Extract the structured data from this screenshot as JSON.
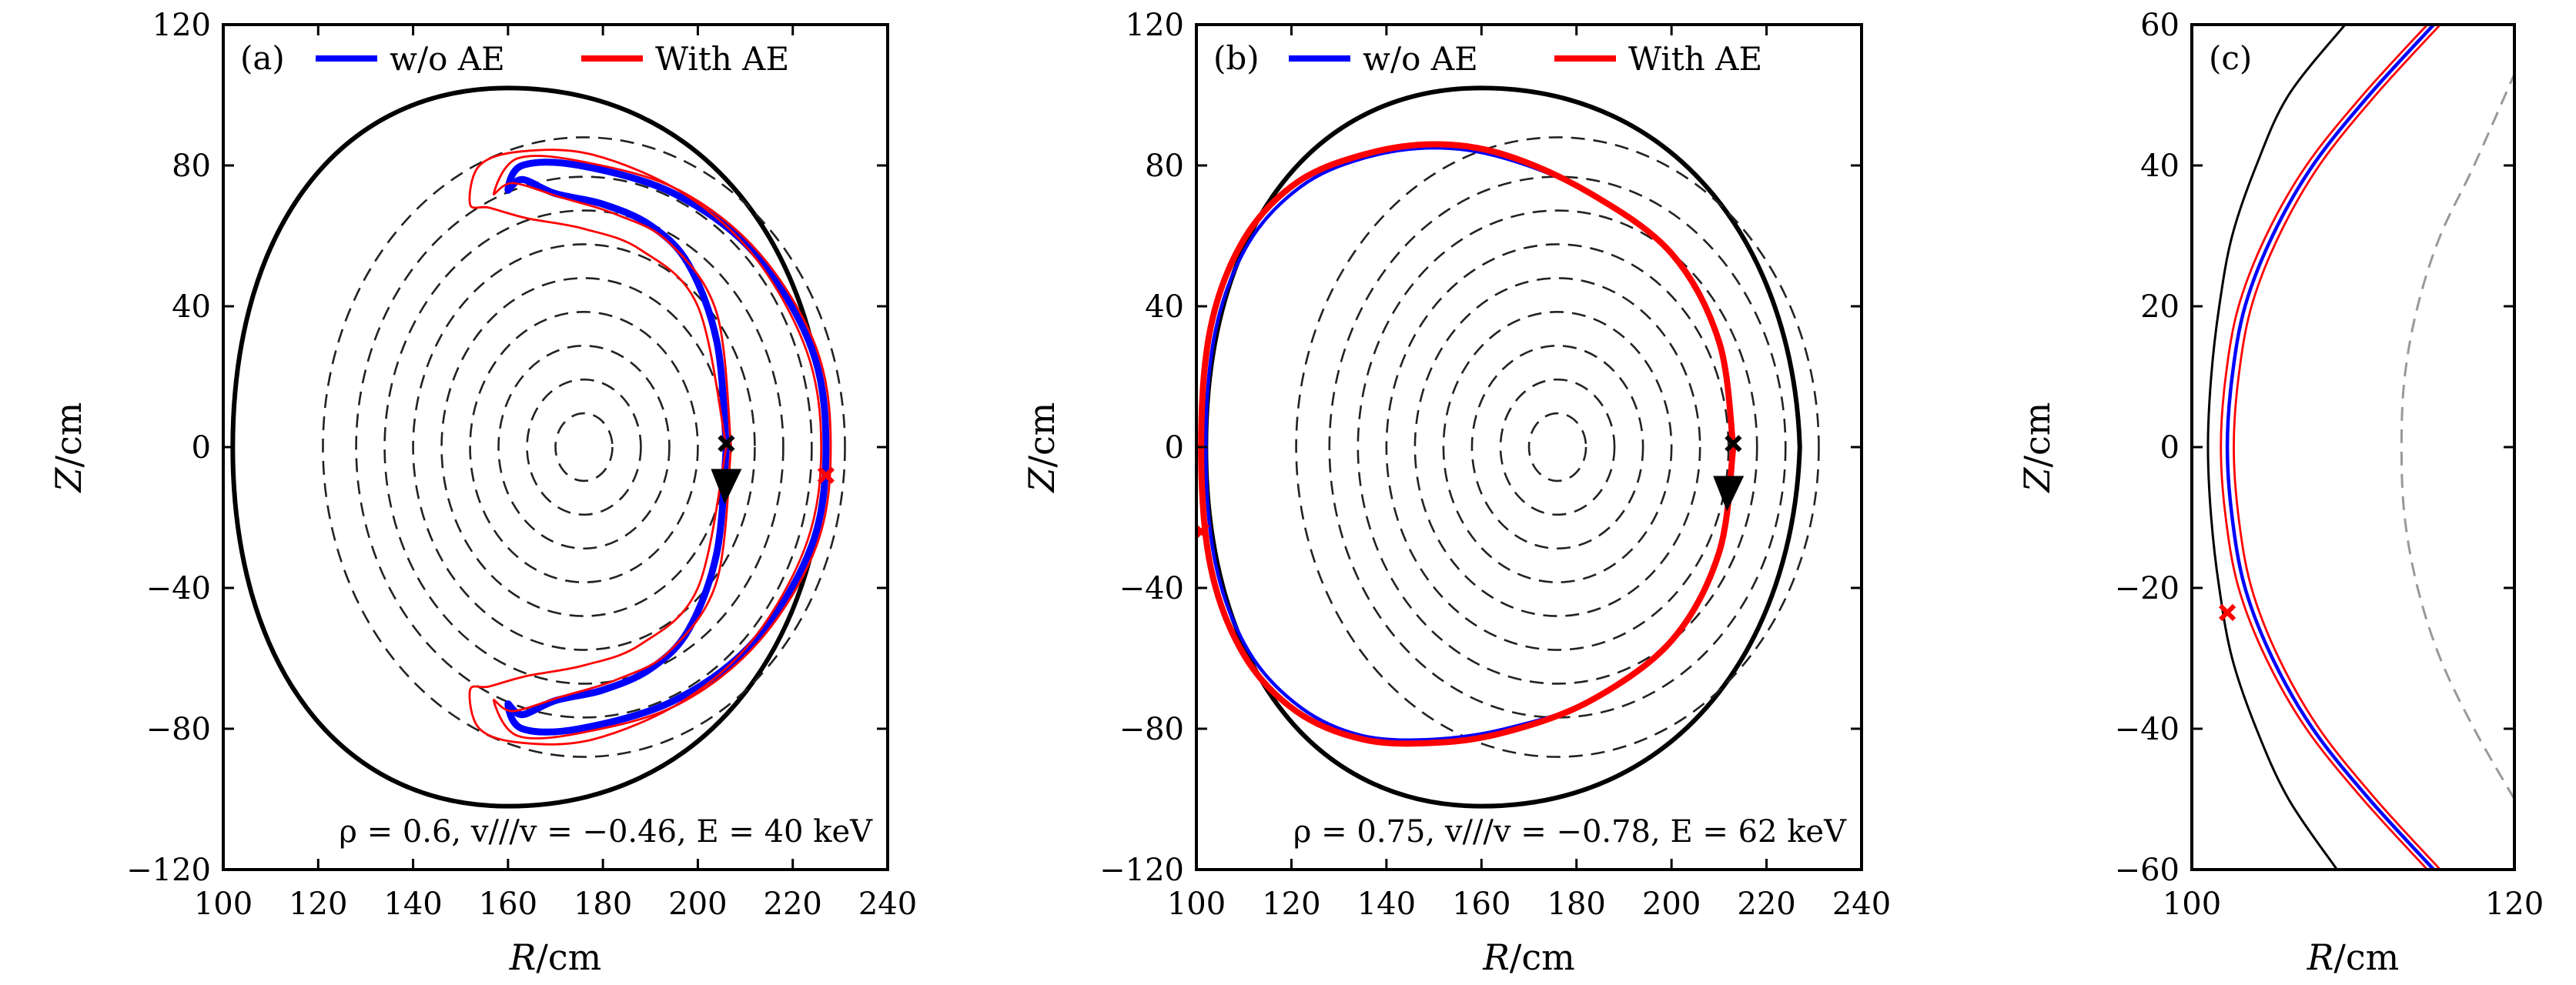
{
  "chart_data": [
    {
      "type": "line",
      "panel_tag": "(a)",
      "xlabel": "R/cm",
      "ylabel": "Z/cm",
      "xlim": [
        100,
        240
      ],
      "ylim": [
        -120,
        120
      ],
      "xticks": [
        100,
        120,
        140,
        160,
        180,
        200,
        220,
        240
      ],
      "yticks": [
        -120,
        -80,
        -40,
        0,
        40,
        80,
        120
      ],
      "xtick_labels": [
        "100",
        "120",
        "140",
        "160",
        "180",
        "200",
        "220",
        "240"
      ],
      "ytick_labels": [
        "−120",
        "−80",
        "−40",
        "0",
        "40",
        "80",
        "120"
      ],
      "legend": {
        "position": "top",
        "entries": [
          {
            "label": "w/o AE",
            "color": "#0000ff"
          },
          {
            "label": "With AE",
            "color": "#ff0000"
          }
        ]
      },
      "annotation": "ρ = 0.6,  v///v = −0.46,  E = 40 keV",
      "boundary": {
        "center": [
          160,
          0
        ],
        "r_outer": 67,
        "r_inner": 58,
        "height": 102
      },
      "flux_surfaces": {
        "axis": [
          176,
          0
        ],
        "half_widths": [
          6,
          12,
          18,
          24,
          30,
          36,
          42,
          48,
          55
        ],
        "elongation": 1.6
      },
      "markers": [
        {
          "name": "start",
          "x": 206,
          "y": 1,
          "color": "#000000",
          "shape": "x"
        },
        {
          "name": "red-start",
          "x": 227,
          "y": -8,
          "color": "#ff0000",
          "shape": "x"
        },
        {
          "name": "direction",
          "x": 206,
          "y": -11,
          "color": "#000000",
          "shape": "arrow"
        }
      ],
      "series": [
        {
          "name": "w/o AE",
          "color": "#0000ff",
          "x": [
            206,
            204,
            198,
            190,
            180,
            170,
            163,
            160,
            163,
            175,
            195,
            212,
            224,
            227,
            224,
            212,
            195,
            175,
            163,
            160,
            163,
            170,
            180,
            190,
            198,
            204,
            206
          ],
          "y": [
            0,
            -30,
            -52,
            -63,
            -69,
            -72,
            -76,
            -73,
            -80,
            -80,
            -72,
            -55,
            -28,
            0,
            28,
            55,
            72,
            80,
            80,
            73,
            76,
            72,
            69,
            63,
            52,
            30,
            0
          ]
        },
        {
          "name": "With AE",
          "color": "#ff0000",
          "x": [
            207,
            204,
            194,
            183,
            171,
            161,
            157,
            162,
            176,
            196,
            213,
            225,
            228,
            225,
            213,
            196,
            176,
            162,
            157,
            161,
            171,
            183,
            194,
            204,
            207
          ],
          "y": [
            0,
            -38,
            -58,
            -66,
            -71,
            -75,
            -72,
            -82,
            -81,
            -73,
            -55,
            -28,
            0,
            28,
            55,
            73,
            81,
            82,
            72,
            75,
            71,
            66,
            58,
            38,
            0
          ]
        },
        {
          "name": "",
          "color": "#ff0000",
          "x": [
            206,
            200,
            188,
            176,
            164,
            156,
            152,
            154,
            163,
            178,
            197,
            212,
            223,
            226,
            223,
            212,
            197,
            178,
            163,
            154,
            152,
            156,
            164,
            176,
            188,
            200,
            206
          ],
          "y": [
            0,
            -40,
            -56,
            -62,
            -65,
            -68,
            -69,
            -80,
            -84,
            -83,
            -72,
            -54,
            -27,
            0,
            27,
            54,
            72,
            83,
            84,
            80,
            69,
            68,
            65,
            62,
            56,
            40,
            0
          ]
        }
      ]
    },
    {
      "type": "line",
      "panel_tag": "(b)",
      "xlabel": "R/cm",
      "ylabel": "Z/cm",
      "xlim": [
        100,
        240
      ],
      "ylim": [
        -120,
        120
      ],
      "xticks": [
        100,
        120,
        140,
        160,
        180,
        200,
        220,
        240
      ],
      "yticks": [
        -120,
        -80,
        -40,
        0,
        40,
        80,
        120
      ],
      "xtick_labels": [
        "100",
        "120",
        "140",
        "160",
        "180",
        "200",
        "220",
        "240"
      ],
      "ytick_labels": [
        "−120",
        "−80",
        "−40",
        "0",
        "40",
        "80",
        "120"
      ],
      "legend": {
        "position": "top",
        "entries": [
          {
            "label": "w/o AE",
            "color": "#0000ff"
          },
          {
            "label": "With AE",
            "color": "#ff0000"
          }
        ]
      },
      "annotation": "ρ = 0.75,  v///v = −0.78,  E = 62 keV",
      "boundary": {
        "center": [
          160,
          0
        ],
        "r_outer": 67,
        "r_inner": 58,
        "height": 102
      },
      "flux_surfaces": {
        "axis": [
          176,
          0
        ],
        "half_widths": [
          6,
          12,
          18,
          24,
          30,
          36,
          42,
          48,
          55
        ],
        "elongation": 1.6
      },
      "markers": [
        {
          "name": "start",
          "x": 213,
          "y": 1,
          "color": "#000000",
          "shape": "x"
        },
        {
          "name": "red-start",
          "x": 101,
          "y": -24,
          "color": "#ff0000",
          "shape": "x"
        },
        {
          "name": "direction",
          "x": 212,
          "y": -13,
          "color": "#000000",
          "shape": "arrow"
        }
      ],
      "series": [
        {
          "name": "w/o AE",
          "color": "#0000ff",
          "x": [
            213,
            210,
            200,
            183,
            165,
            150,
            135,
            122,
            111,
            104,
            102,
            104,
            111,
            122,
            135,
            150,
            165,
            183,
            200,
            210,
            213
          ],
          "y": [
            0,
            -30,
            -55,
            -72,
            -80,
            -83,
            -82,
            -74,
            -58,
            -33,
            0,
            33,
            58,
            74,
            82,
            85,
            82,
            72,
            55,
            30,
            0
          ]
        },
        {
          "name": "With AE",
          "color": "#ff0000",
          "x": [
            213,
            210,
            200,
            183,
            165,
            150,
            135,
            121,
            110,
            103,
            101,
            103,
            110,
            121,
            135,
            150,
            165,
            183,
            200,
            210,
            213
          ],
          "y": [
            0,
            -30,
            -55,
            -72,
            -81,
            -84,
            -83,
            -75,
            -59,
            -34,
            0,
            34,
            59,
            75,
            83,
            86,
            83,
            72,
            55,
            30,
            0
          ]
        }
      ]
    },
    {
      "type": "line",
      "panel_tag": "(c)",
      "xlabel": "R/cm",
      "ylabel": "Z/cm",
      "xlim": [
        100,
        120
      ],
      "ylim": [
        -60,
        60
      ],
      "xticks": [
        100,
        120
      ],
      "yticks": [
        -60,
        -40,
        -20,
        0,
        20,
        40,
        60
      ],
      "xtick_labels": [
        "100",
        "120"
      ],
      "ytick_labels": [
        "−60",
        "−40",
        "−20",
        "0",
        "20",
        "40",
        "60"
      ],
      "markers": [
        {
          "name": "red-start",
          "x": 102.2,
          "y": -23.5,
          "color": "#ff0000",
          "shape": "x"
        }
      ],
      "series": [
        {
          "name": "w/o AE",
          "color": "#0000ff",
          "x": [
            115,
            111,
            107.5,
            105,
            103.3,
            102.5,
            102.2,
            102.5,
            103.3,
            105,
            107.5,
            111,
            115
          ],
          "y": [
            -60,
            -50,
            -40,
            -30,
            -20,
            -10,
            0,
            10,
            20,
            30,
            40,
            50,
            60
          ]
        },
        {
          "name": "",
          "color": "#ff0000",
          "x": [
            114.6,
            110.6,
            107.1,
            104.6,
            102.9,
            102.1,
            101.8,
            102.1,
            102.9,
            104.6,
            107.1,
            110.6,
            114.6
          ],
          "y": [
            -60,
            -50,
            -40,
            -30,
            -20,
            -10,
            0,
            10,
            20,
            30,
            40,
            50,
            60
          ]
        },
        {
          "name": "",
          "color": "#ff0000",
          "x": [
            115.4,
            111.4,
            107.9,
            105.4,
            103.7,
            102.9,
            102.6,
            102.9,
            103.7,
            105.4,
            107.9,
            111.4,
            115.4
          ],
          "y": [
            -60,
            -50,
            -40,
            -30,
            -20,
            -10,
            0,
            10,
            20,
            30,
            40,
            50,
            60
          ]
        },
        {
          "name": "",
          "color": "#000000",
          "x": [
            109,
            106,
            104,
            102.5,
            101.7,
            101.2,
            101,
            101.2,
            101.7,
            102.5,
            104,
            106,
            109.5
          ],
          "y": [
            -60,
            -50,
            -40,
            -30,
            -20,
            -10,
            0,
            10,
            20,
            30,
            40,
            50,
            60
          ]
        },
        {
          "name": "",
          "color": "#999999",
          "x": [
            120,
            117.5,
            115.4,
            114,
            113.2,
            113,
            113.2,
            114,
            115.4,
            117.5,
            120
          ],
          "y": [
            -50,
            -40,
            -30,
            -20,
            -10,
            0,
            10,
            20,
            30,
            40,
            53
          ]
        }
      ]
    }
  ]
}
